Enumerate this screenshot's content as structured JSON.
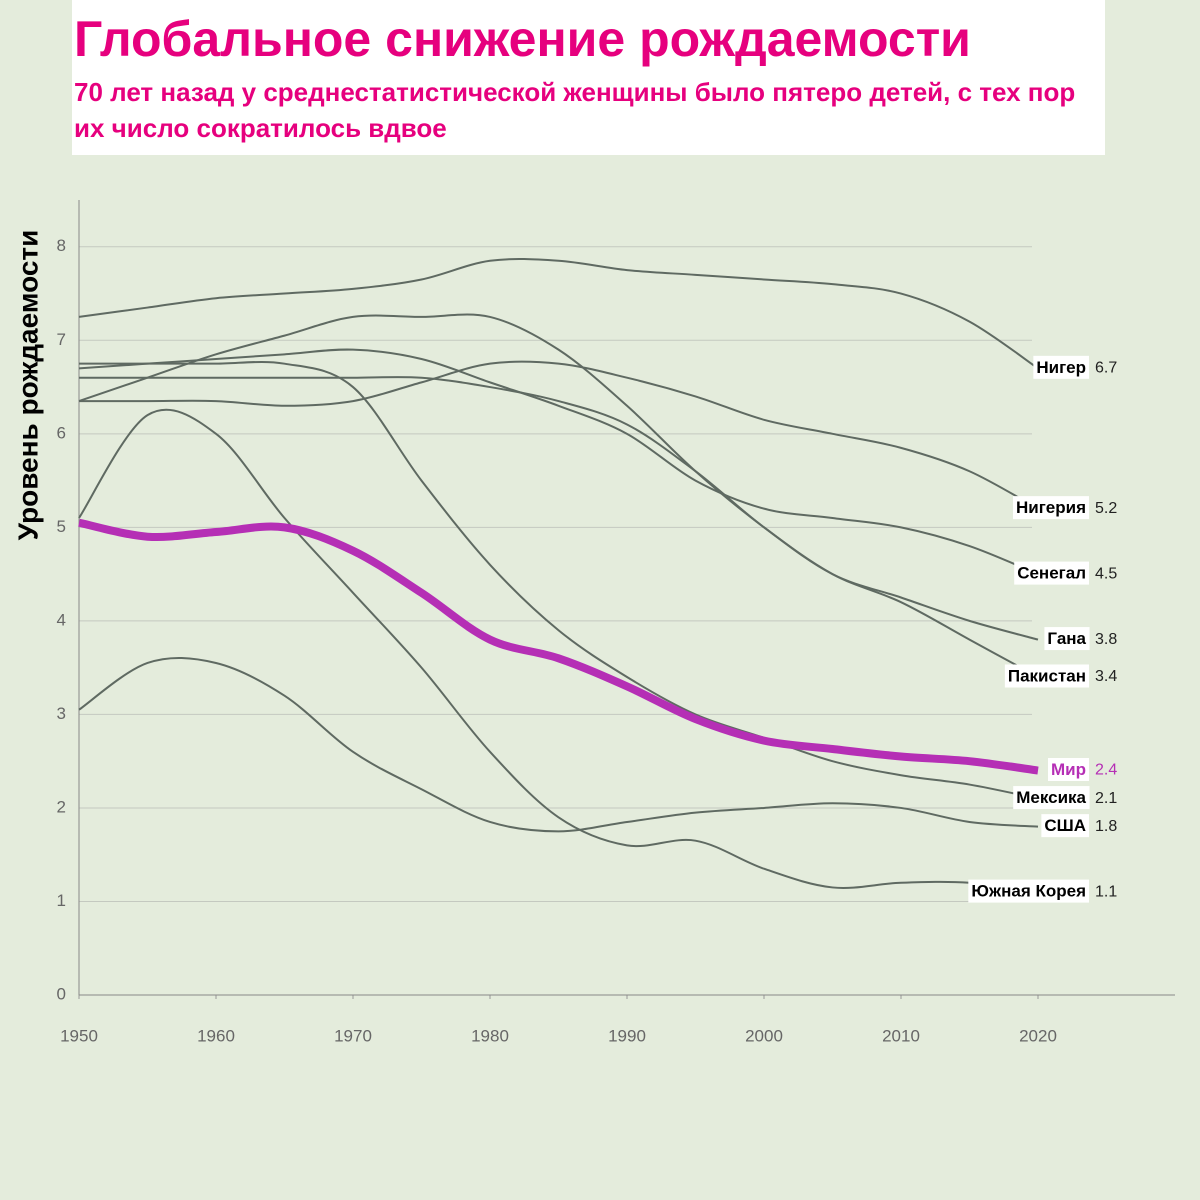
{
  "chart_data": {
    "type": "line",
    "title": "Глобальное снижение рождаемости",
    "subtitle": "70 лет назад у среднестатистической женщины было пятеро детей, с тех пор их число сократилось вдвое",
    "y_label": "Уровень рождаемости",
    "x": [
      1950,
      1955,
      1960,
      1965,
      1970,
      1975,
      1980,
      1985,
      1990,
      1995,
      2000,
      2005,
      2010,
      2015,
      2020
    ],
    "xlim": [
      1950,
      2030
    ],
    "xticks": [
      1950,
      1960,
      1970,
      1980,
      1990,
      2000,
      2010,
      2020
    ],
    "ylim": [
      0,
      8.5
    ],
    "yticks": [
      0,
      1,
      2,
      3,
      4,
      5,
      6,
      7,
      8
    ],
    "grid": true,
    "series": [
      {
        "name": "Нигер",
        "color": "#5f6a62",
        "values": [
          7.25,
          7.35,
          7.45,
          7.5,
          7.55,
          7.65,
          7.85,
          7.85,
          7.75,
          7.7,
          7.65,
          7.6,
          7.5,
          7.2,
          6.7
        ]
      },
      {
        "name": "Нигерия",
        "color": "#5f6a62",
        "values": [
          6.35,
          6.35,
          6.35,
          6.3,
          6.35,
          6.55,
          6.75,
          6.75,
          6.6,
          6.4,
          6.15,
          6.0,
          5.85,
          5.6,
          5.2
        ]
      },
      {
        "name": "Сенегал",
        "color": "#5f6a62",
        "values": [
          6.7,
          6.75,
          6.8,
          6.85,
          6.9,
          6.8,
          6.55,
          6.3,
          6.0,
          5.5,
          5.2,
          5.1,
          5.0,
          4.8,
          4.5
        ]
      },
      {
        "name": "Гана",
        "color": "#5f6a62",
        "values": [
          6.35,
          6.6,
          6.85,
          7.05,
          7.25,
          7.25,
          7.25,
          6.9,
          6.3,
          5.6,
          5.0,
          4.5,
          4.25,
          4.0,
          3.8
        ]
      },
      {
        "name": "Пакистан",
        "color": "#5f6a62",
        "values": [
          6.6,
          6.6,
          6.6,
          6.6,
          6.6,
          6.6,
          6.5,
          6.35,
          6.1,
          5.6,
          5.0,
          4.5,
          4.2,
          3.8,
          3.4
        ]
      },
      {
        "name": "Мир",
        "color": "#b52fb5",
        "values": [
          5.05,
          4.9,
          4.95,
          5.0,
          4.75,
          4.3,
          3.8,
          3.6,
          3.3,
          2.95,
          2.72,
          2.63,
          2.55,
          2.5,
          2.4
        ]
      },
      {
        "name": "Мексика",
        "color": "#5f6a62",
        "values": [
          6.75,
          6.75,
          6.75,
          6.75,
          6.5,
          5.5,
          4.6,
          3.9,
          3.4,
          3.0,
          2.75,
          2.5,
          2.35,
          2.25,
          2.1
        ]
      },
      {
        "name": "США",
        "color": "#5f6a62",
        "values": [
          3.05,
          3.55,
          3.55,
          3.2,
          2.6,
          2.2,
          1.85,
          1.75,
          1.85,
          1.95,
          2.0,
          2.05,
          2.0,
          1.85,
          1.8
        ]
      },
      {
        "name": "Южная Корея",
        "color": "#5f6a62",
        "values": [
          5.1,
          6.2,
          6.0,
          5.1,
          4.3,
          3.5,
          2.6,
          1.9,
          1.6,
          1.65,
          1.35,
          1.15,
          1.2,
          1.2,
          1.1
        ]
      }
    ]
  }
}
